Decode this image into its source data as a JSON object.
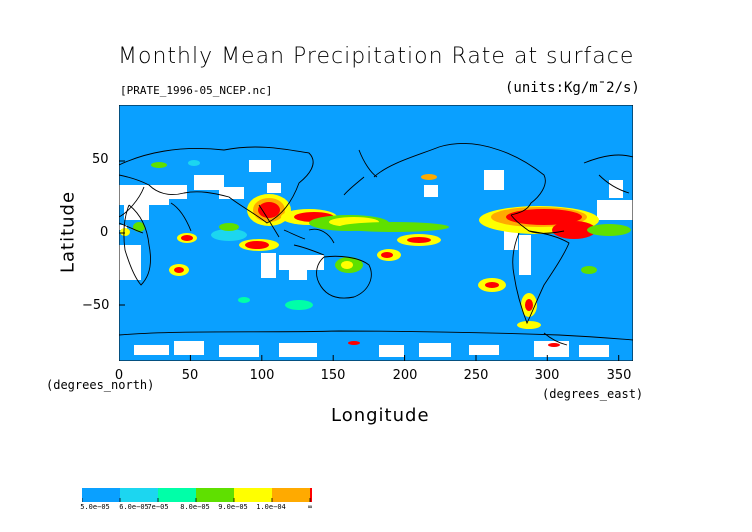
{
  "title": "Monthly Mean Precipitation Rate at surface",
  "subtitle": "[PRATE_1996-05_NCEP.nc]",
  "units": "(units:Kg/m¯2/s)",
  "x_axis": {
    "label": "Longitude",
    "unit_label": "(degrees_east)",
    "ticks": [
      "0",
      "50",
      "100",
      "150",
      "200",
      "250",
      "300",
      "350"
    ]
  },
  "y_axis": {
    "label": "Latitude",
    "unit_label": "(degrees_north)",
    "ticks": [
      "50",
      "0",
      "−50"
    ]
  },
  "colorbar": {
    "labels": [
      "5.0e−05",
      "6.0e−05",
      "7e−05",
      "8.0e−05",
      "9.0e−05",
      "1.0e−04",
      "∞"
    ],
    "colors": [
      "#0aa0ff",
      "#1cd6f0",
      "#00ffa8",
      "#5fe000",
      "#ffff00",
      "#ffaa00",
      "#ff0000"
    ]
  },
  "map": {
    "ocean_color": "#0aa0ff",
    "missing_color": "#ffffff",
    "coast_color": "#000000"
  }
}
